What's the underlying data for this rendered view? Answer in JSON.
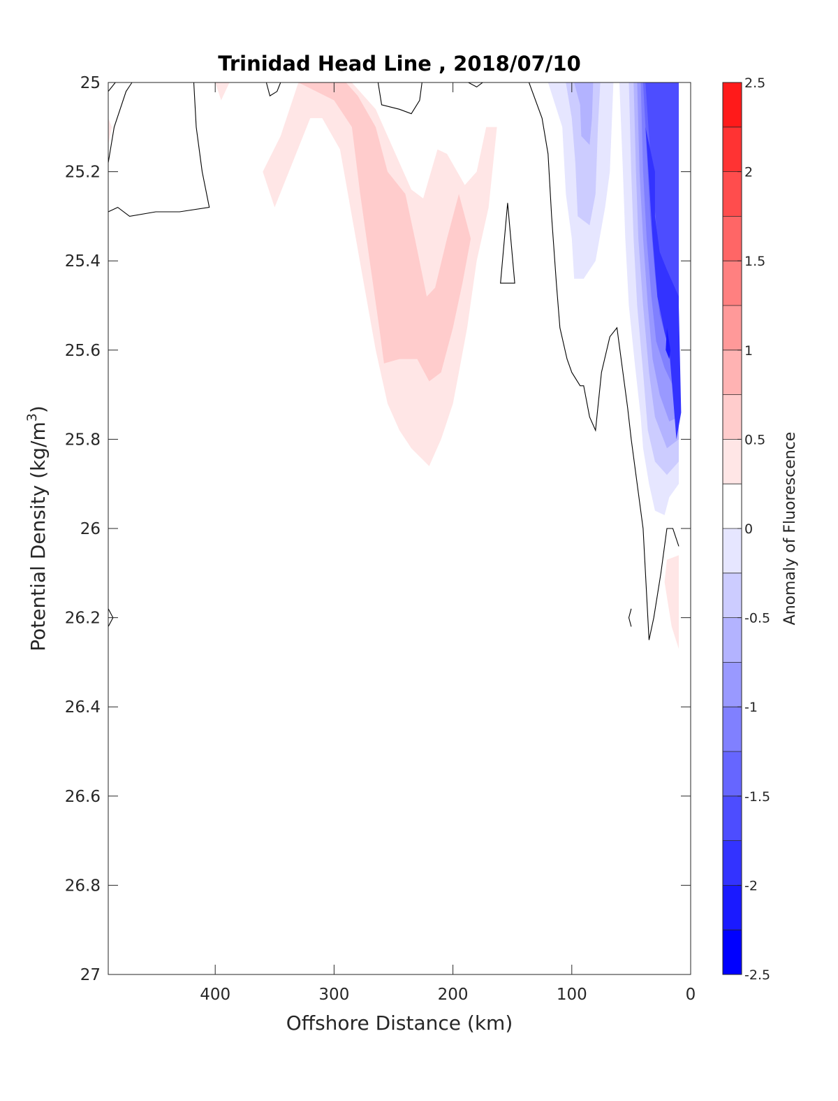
{
  "chart_data": {
    "type": "contourf",
    "title": "Trinidad Head Line , 2018/07/10",
    "xlabel": "Offshore Distance (km)",
    "ylabel": "Potential Density (kg/m",
    "ylabel_superscript": "3",
    "ylabel_suffix": ")",
    "xlim": [
      490,
      0
    ],
    "x_reversed": true,
    "ylim": [
      25,
      27
    ],
    "y_reversed": true,
    "x_ticks": [
      400,
      300,
      200,
      100,
      0
    ],
    "x_tick_labels": [
      "400",
      "300",
      "200",
      "100",
      "0"
    ],
    "y_ticks": [
      25,
      25.2,
      25.4,
      25.6,
      25.8,
      26,
      26.2,
      26.4,
      26.6,
      26.8,
      27
    ],
    "y_tick_labels": [
      "25",
      "25.2",
      "25.4",
      "25.6",
      "25.8",
      "26",
      "26.2",
      "26.4",
      "26.6",
      "26.8",
      "27"
    ],
    "colorbar": {
      "label": "Anomaly of Fluorescence",
      "range": [
        -2.5,
        2.5
      ],
      "levels": [
        -2.5,
        -2.25,
        -2,
        -1.75,
        -1.5,
        -1.25,
        -1,
        -0.75,
        -0.5,
        -0.25,
        0,
        0.25,
        0.5,
        0.75,
        1,
        1.25,
        1.5,
        1.75,
        2,
        2.25,
        2.5
      ],
      "ticks": [
        2.5,
        2,
        1.5,
        1,
        0.5,
        0,
        -0.5,
        -1,
        -1.5,
        -2,
        -2.5
      ],
      "tick_labels": [
        "2.5",
        "2",
        "1.5",
        "1",
        "0.5",
        "0",
        "-0.5",
        "-1",
        "-1.5",
        "-2",
        "-2.5"
      ],
      "colors": [
        "#0000ff",
        "#1a1aff",
        "#3333ff",
        "#4d4dff",
        "#6666ff",
        "#8080ff",
        "#9999ff",
        "#b3b3ff",
        "#ccccff",
        "#e6e6ff",
        "#ffffff",
        "#ffffff",
        "#ffe6e6",
        "#ffcccc",
        "#ffb3b3",
        "#ff9999",
        "#ff8080",
        "#ff6666",
        "#ff4d4d",
        "#ff3333",
        "#ff1a1a",
        "#ff0000"
      ]
    },
    "regions": [
      {
        "level": 0.375,
        "color": "#ffe6e6",
        "points": [
          [
            490,
            25.08
          ],
          [
            487,
            25.1
          ],
          [
            490,
            25.14
          ]
        ]
      },
      {
        "level": 0.375,
        "color": "#ffe6e6",
        "points": [
          [
            400,
            25
          ],
          [
            395,
            25.04
          ],
          [
            388,
            25
          ]
        ]
      },
      {
        "level": 0.375,
        "color": "#ffe6e6",
        "points": [
          [
            330,
            25
          ],
          [
            345,
            25.12
          ],
          [
            360,
            25.2
          ],
          [
            350,
            25.28
          ],
          [
            338,
            25.2
          ],
          [
            320,
            25.08
          ],
          [
            300,
            25
          ],
          [
            420,
            25
          ],
          [
            330,
            25
          ]
        ]
      },
      {
        "level": 0.375,
        "color": "#ffe6e6",
        "points": [
          [
            330,
            25
          ],
          [
            323,
            25.08
          ],
          [
            310,
            25.08
          ],
          [
            295,
            25.15
          ],
          [
            285,
            25.3
          ],
          [
            275,
            25.45
          ],
          [
            265,
            25.6
          ],
          [
            255,
            25.72
          ],
          [
            245,
            25.78
          ],
          [
            235,
            25.82
          ],
          [
            220,
            25.86
          ],
          [
            210,
            25.8
          ],
          [
            200,
            25.72
          ],
          [
            195,
            25.65
          ],
          [
            188,
            25.55
          ],
          [
            180,
            25.4
          ],
          [
            170,
            25.28
          ],
          [
            163,
            25.1
          ],
          [
            172,
            25.1
          ],
          [
            180,
            25.2
          ],
          [
            190,
            25.23
          ],
          [
            205,
            25.16
          ],
          [
            213,
            25.15
          ],
          [
            225,
            25.26
          ],
          [
            235,
            25.24
          ],
          [
            250,
            25.15
          ],
          [
            265,
            25.06
          ],
          [
            285,
            25
          ],
          [
            330,
            25
          ]
        ]
      },
      {
        "level": 0.625,
        "color": "#ffcccc",
        "points": [
          [
            330,
            25
          ],
          [
            300,
            25.04
          ],
          [
            285,
            25.1
          ],
          [
            278,
            25.25
          ],
          [
            270,
            25.4
          ],
          [
            262,
            25.55
          ],
          [
            258,
            25.63
          ],
          [
            245,
            25.62
          ],
          [
            230,
            25.62
          ],
          [
            220,
            25.67
          ],
          [
            210,
            25.65
          ],
          [
            200,
            25.55
          ],
          [
            192,
            25.45
          ],
          [
            185,
            25.35
          ],
          [
            195,
            25.25
          ],
          [
            205,
            25.35
          ],
          [
            215,
            25.46
          ],
          [
            222,
            25.48
          ],
          [
            232,
            25.35
          ],
          [
            240,
            25.25
          ],
          [
            255,
            25.2
          ],
          [
            265,
            25.1
          ],
          [
            280,
            25.03
          ],
          [
            290,
            25
          ],
          [
            330,
            25
          ]
        ]
      },
      {
        "level": 0.375,
        "color": "#ffe6e6",
        "points": [
          [
            20,
            26.07
          ],
          [
            10,
            26.06
          ],
          [
            10,
            26.27
          ],
          [
            16,
            26.22
          ],
          [
            22,
            26.12
          ]
        ]
      },
      {
        "level": -0.375,
        "color": "#e6e6ff",
        "points": [
          [
            120,
            25
          ],
          [
            108,
            25.1
          ],
          [
            105,
            25.25
          ],
          [
            100,
            25.35
          ],
          [
            98,
            25.44
          ],
          [
            90,
            25.44
          ],
          [
            80,
            25.4
          ],
          [
            72,
            25.28
          ],
          [
            68,
            25.2
          ],
          [
            65,
            25
          ],
          [
            120,
            25
          ]
        ]
      },
      {
        "level": -0.625,
        "color": "#ccccff",
        "points": [
          [
            105,
            25
          ],
          [
            100,
            25.08
          ],
          [
            97,
            25.18
          ],
          [
            95,
            25.3
          ],
          [
            85,
            25.32
          ],
          [
            80,
            25.25
          ],
          [
            78,
            25.1
          ],
          [
            76,
            25
          ]
        ]
      },
      {
        "level": -0.875,
        "color": "#b3b3ff",
        "points": [
          [
            98,
            25
          ],
          [
            93,
            25.05
          ],
          [
            92,
            25.12
          ],
          [
            85,
            25.14
          ],
          [
            83,
            25.08
          ],
          [
            82,
            25
          ]
        ]
      },
      {
        "level": -0.375,
        "color": "#e6e6ff",
        "points": [
          [
            60,
            25
          ],
          [
            57,
            25.2
          ],
          [
            55,
            25.35
          ],
          [
            52,
            25.5
          ],
          [
            47,
            25.63
          ],
          [
            42,
            25.75
          ],
          [
            40,
            25.82
          ],
          [
            35,
            25.9
          ],
          [
            30,
            25.96
          ],
          [
            22,
            25.97
          ],
          [
            18,
            25.93
          ],
          [
            10,
            25.9
          ],
          [
            10,
            25
          ],
          [
            60,
            25
          ]
        ]
      },
      {
        "level": -0.625,
        "color": "#ccccff",
        "points": [
          [
            52,
            25
          ],
          [
            50,
            25.2
          ],
          [
            48,
            25.35
          ],
          [
            45,
            25.5
          ],
          [
            40,
            25.65
          ],
          [
            36,
            25.78
          ],
          [
            30,
            25.85
          ],
          [
            20,
            25.88
          ],
          [
            10,
            25.85
          ],
          [
            10,
            25
          ],
          [
            52,
            25
          ]
        ]
      },
      {
        "level": -0.875,
        "color": "#b3b3ff",
        "points": [
          [
            48,
            25
          ],
          [
            46,
            25.2
          ],
          [
            44,
            25.35
          ],
          [
            40,
            25.5
          ],
          [
            35,
            25.65
          ],
          [
            30,
            25.75
          ],
          [
            20,
            25.82
          ],
          [
            10,
            25.8
          ],
          [
            10,
            25
          ],
          [
            48,
            25
          ]
        ]
      },
      {
        "level": -1.125,
        "color": "#9999ff",
        "points": [
          [
            45,
            25
          ],
          [
            43,
            25.2
          ],
          [
            40,
            25.35
          ],
          [
            36,
            25.5
          ],
          [
            32,
            25.62
          ],
          [
            26,
            25.7
          ],
          [
            18,
            25.76
          ],
          [
            10,
            25.75
          ],
          [
            10,
            25
          ],
          [
            45,
            25
          ]
        ]
      },
      {
        "level": -1.375,
        "color": "#8080ff",
        "points": [
          [
            42,
            25
          ],
          [
            40,
            25.2
          ],
          [
            37,
            25.35
          ],
          [
            33,
            25.48
          ],
          [
            29,
            25.58
          ],
          [
            22,
            25.64
          ],
          [
            15,
            25.68
          ],
          [
            10,
            25.68
          ],
          [
            10,
            25
          ],
          [
            42,
            25
          ]
        ]
      },
      {
        "level": -1.625,
        "color": "#6666ff",
        "points": [
          [
            40,
            25
          ],
          [
            37,
            25.15
          ],
          [
            34,
            25.3
          ],
          [
            30,
            25.43
          ],
          [
            26,
            25.52
          ],
          [
            20,
            25.58
          ],
          [
            14,
            25.62
          ],
          [
            10,
            25.62
          ],
          [
            10,
            25
          ],
          [
            40,
            25
          ]
        ]
      },
      {
        "level": -1.875,
        "color": "#4d4dff",
        "points": [
          [
            38,
            25
          ],
          [
            35,
            25.12
          ],
          [
            31,
            25.26
          ],
          [
            27,
            25.37
          ],
          [
            22,
            25.46
          ],
          [
            16,
            25.52
          ],
          [
            10,
            25.55
          ],
          [
            10,
            25
          ],
          [
            38,
            25
          ]
        ]
      },
      {
        "level": -2.125,
        "color": "#3333ff",
        "points": [
          [
            38,
            25.1
          ],
          [
            30,
            25.2
          ],
          [
            30,
            25.3
          ],
          [
            26,
            25.38
          ],
          [
            20,
            25.42
          ],
          [
            10,
            25.48
          ],
          [
            10,
            25.5
          ],
          [
            8,
            25.74
          ],
          [
            12,
            25.8
          ],
          [
            18,
            25.6
          ],
          [
            22,
            25.56
          ],
          [
            28,
            25.48
          ],
          [
            32,
            25.35
          ],
          [
            35,
            25.22
          ]
        ]
      },
      {
        "level": -2.375,
        "color": "#1a1aff",
        "points": [
          [
            20,
            25.55
          ],
          [
            17,
            25.6
          ],
          [
            18,
            25.62
          ],
          [
            21,
            25.6
          ]
        ]
      }
    ],
    "contour_zero": [
      [
        [
          490,
          25.02
        ],
        [
          484,
          25.0
        ]
      ],
      [
        [
          490,
          25.18
        ],
        [
          485,
          25.1
        ],
        [
          475,
          25.02
        ],
        [
          470,
          25.0
        ]
      ],
      [
        [
          418,
          25.0
        ],
        [
          416,
          25.1
        ],
        [
          411,
          25.2
        ],
        [
          405,
          25.28
        ],
        [
          430,
          25.29
        ],
        [
          450,
          25.29
        ],
        [
          472,
          25.3
        ],
        [
          482,
          25.28
        ],
        [
          490,
          25.29
        ]
      ],
      [
        [
          357,
          25.0
        ],
        [
          354,
          25.03
        ],
        [
          348,
          25.02
        ],
        [
          345,
          25.0
        ]
      ],
      [
        [
          263,
          25.0
        ],
        [
          260,
          25.05
        ],
        [
          245,
          25.06
        ],
        [
          235,
          25.07
        ],
        [
          228,
          25.04
        ],
        [
          226,
          25.0
        ]
      ],
      [
        [
          187,
          25.0
        ],
        [
          180,
          25.01
        ],
        [
          175,
          25.0
        ],
        [
          170,
          25.0
        ]
      ],
      [
        [
          136,
          25.0
        ],
        [
          125,
          25.08
        ],
        [
          120,
          25.16
        ],
        [
          117,
          25.3
        ],
        [
          113,
          25.45
        ],
        [
          110,
          25.55
        ],
        [
          104,
          25.62
        ],
        [
          100,
          25.65
        ],
        [
          93,
          25.68
        ],
        [
          90,
          25.68
        ],
        [
          85,
          25.75
        ],
        [
          80,
          25.78
        ],
        [
          75,
          25.65
        ],
        [
          68,
          25.57
        ],
        [
          62,
          25.55
        ],
        [
          58,
          25.63
        ],
        [
          53,
          25.73
        ],
        [
          50,
          25.8
        ],
        [
          45,
          25.9
        ],
        [
          40,
          26.0
        ],
        [
          38,
          26.1
        ],
        [
          36,
          26.2
        ],
        [
          35,
          26.25
        ],
        [
          31,
          26.2
        ],
        [
          25,
          26.1
        ],
        [
          20,
          26.0
        ],
        [
          15,
          26.0
        ],
        [
          10,
          26.04
        ]
      ],
      [
        [
          154,
          25.27
        ],
        [
          148,
          25.45
        ],
        [
          160,
          25.45
        ],
        [
          154,
          25.27
        ]
      ],
      [
        [
          50,
          26.18
        ],
        [
          52,
          26.2
        ],
        [
          50,
          26.22
        ]
      ],
      [
        [
          490,
          26.18
        ],
        [
          486,
          26.2
        ],
        [
          490,
          26.22
        ]
      ]
    ]
  }
}
